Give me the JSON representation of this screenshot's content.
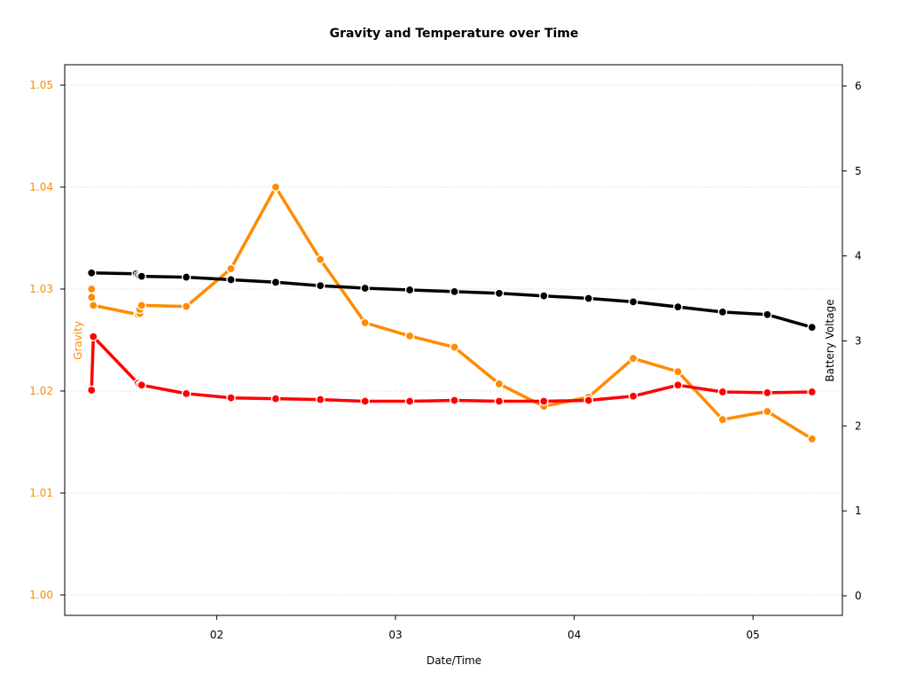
{
  "chart_data": {
    "type": "line",
    "title": "Gravity and Temperature over Time",
    "xlabel": "Date/Time",
    "ylabel_left": "Gravity",
    "ylabel_right": "Battery Voltage",
    "xlim": [
      1.15,
      5.5
    ],
    "x_ticks": [
      {
        "value": 2,
        "label": "02"
      },
      {
        "value": 3,
        "label": "03"
      },
      {
        "value": 4,
        "label": "04"
      },
      {
        "value": 5,
        "label": "05"
      }
    ],
    "ylim_left": [
      0.998,
      1.052
    ],
    "y_ticks_left": [
      "1.00",
      "1.01",
      "1.02",
      "1.03",
      "1.04",
      "1.05"
    ],
    "ylim_right": [
      -0.23,
      6.25
    ],
    "y_ticks_right": [
      "0",
      "1",
      "2",
      "3",
      "4",
      "5",
      "6"
    ],
    "grid": "horizontal-dotted",
    "colors": {
      "gravity": "#ff8c00",
      "temperature": "#ff0000",
      "battery": "#000000",
      "left_axis": "#ff8c00",
      "right_axis": "#000000",
      "grid": "#cccccc"
    },
    "series": [
      {
        "key": "gravity",
        "axis": "left",
        "x": [
          1.3,
          1.3,
          1.31,
          1.56,
          1.57,
          1.57,
          1.58,
          1.83,
          2.08,
          2.33,
          2.58,
          2.83,
          3.08,
          3.33,
          3.58,
          3.83,
          4.08,
          4.33,
          4.58,
          4.83,
          5.08,
          5.33
        ],
        "y": [
          1.03,
          1.0292,
          1.0284,
          1.0275,
          1.0276,
          1.028,
          1.0284,
          1.0283,
          1.032,
          1.04,
          1.0329,
          1.0267,
          1.0254,
          1.0243,
          1.0207,
          1.0185,
          1.0194,
          1.0232,
          1.0219,
          1.0172,
          1.018,
          1.0153
        ]
      },
      {
        "key": "temperature",
        "axis": "right",
        "x": [
          1.3,
          1.31,
          1.56,
          1.57,
          1.58,
          1.83,
          2.08,
          2.33,
          2.58,
          2.83,
          3.08,
          3.33,
          3.58,
          3.83,
          4.08,
          4.33,
          4.58,
          4.83,
          5.08,
          5.33
        ],
        "y": [
          2.42,
          3.05,
          2.5,
          2.48,
          2.48,
          2.38,
          2.33,
          2.32,
          2.31,
          2.29,
          2.29,
          2.3,
          2.29,
          2.29,
          2.3,
          2.35,
          2.48,
          2.4,
          2.39,
          2.4
        ]
      },
      {
        "key": "battery",
        "axis": "right",
        "x": [
          1.3,
          1.55,
          1.56,
          1.57,
          1.58,
          1.83,
          2.08,
          2.33,
          2.58,
          2.83,
          3.08,
          3.33,
          3.58,
          3.83,
          4.08,
          4.33,
          4.58,
          4.83,
          5.08,
          5.33
        ],
        "y": [
          3.8,
          3.79,
          3.77,
          3.76,
          3.76,
          3.75,
          3.72,
          3.69,
          3.65,
          3.62,
          3.6,
          3.58,
          3.56,
          3.53,
          3.5,
          3.46,
          3.4,
          3.34,
          3.31,
          3.16
        ]
      }
    ]
  }
}
